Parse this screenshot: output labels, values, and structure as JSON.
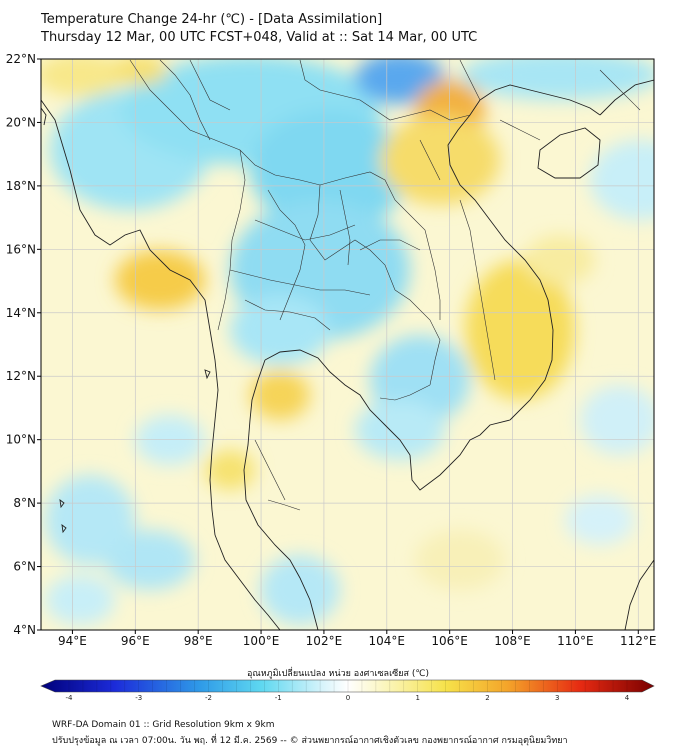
{
  "header": {
    "title_line1": "Temperature Change 24-hr (℃) - [Data Assimilation]",
    "title_line2": "Thursday 12 Mar, 00 UTC FCST+048, Valid at :: Sat 14 Mar, 00 UTC"
  },
  "map": {
    "lat_labels": [
      "22°N",
      "20°N",
      "18°N",
      "16°N",
      "14°N",
      "12°N",
      "10°N",
      "8°N",
      "6°N",
      "4°N"
    ],
    "lon_labels": [
      "94°E",
      "96°E",
      "98°E",
      "100°E",
      "102°E",
      "104°E",
      "106°E",
      "108°E",
      "110°E",
      "112°E"
    ],
    "lat_range": [
      4,
      22
    ],
    "lon_range": [
      93,
      112.5
    ]
  },
  "colorbar": {
    "label": "อุณหภูมิเปลี่ยนแปลง หน่วย องศาเซลเซียส (℃)",
    "ticks": [
      "-4",
      "-3",
      "-2",
      "-1",
      "0",
      "1",
      "2",
      "3",
      "4"
    ],
    "range": [
      -4,
      4
    ]
  },
  "footer": {
    "line1": "WRF-DA Domain 01 :: Grid Resolution 9km x 9km",
    "line2": "ปรับปรุงข้อมูล ณ เวลา 07:00น. วัน พฤ. ที่ 12 มี.ค. 2569 -- © ส่วนพยากรณ์อากาศเชิงตัวเลข กองพยากรณ์อากาศ กรมอุตุนิยมวิทยา"
  }
}
